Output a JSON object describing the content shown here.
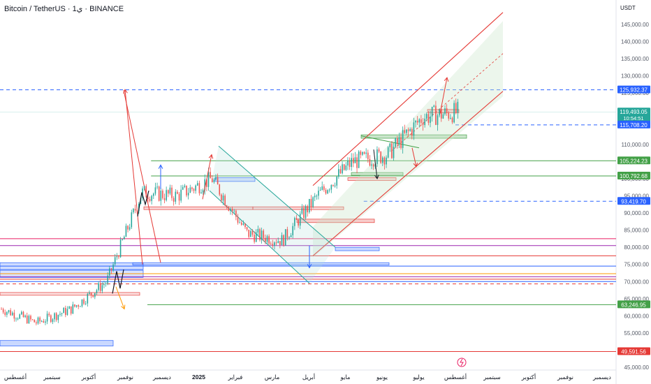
{
  "header": {
    "title": "Bitcoin / TetherUS · 1ي · BINANCE",
    "currency": "USDT"
  },
  "colors": {
    "up": "#26a69a",
    "down": "#ef5350",
    "blue_line": "#2962ff",
    "green_line": "#43a047",
    "red_line": "#e53935",
    "channel_fill": "#e8f5e9"
  },
  "chart_data": {
    "type": "candlestick",
    "ylim": [
      45000,
      150000
    ],
    "y_ticks": [
      145000,
      140000,
      135000,
      130000,
      125000,
      120000,
      110000,
      105000,
      100000,
      95000,
      90000,
      85000,
      80000,
      75000,
      70000,
      65000,
      60000,
      55000,
      45000
    ],
    "y_tick_labels": [
      "145,000.00",
      "140,000.00",
      "135,000.00",
      "130,000.00",
      "125,000.00",
      "120,000.00",
      "110,000.00",
      "105,000.00",
      "100,000.00",
      "95,000.00",
      "90,000.00",
      "85,000.00",
      "80,000.00",
      "75,000.00",
      "70,000.00",
      "65,000.00",
      "60,000.00",
      "55,000.00",
      "45,000.00"
    ],
    "x_labels": [
      "أغسطس",
      "سبتمبر",
      "أكتوبر",
      "نوفمبر",
      "ديسمبر",
      "2025",
      "فبراير",
      "مارس",
      "أبريل",
      "مايو",
      "يونيو",
      "يوليو",
      "أغسطس",
      "سبتمبر",
      "أكتوبر",
      "نوفمبر",
      "ديسمبر"
    ],
    "x_label_month_index": [
      0,
      1,
      2,
      3,
      4,
      5,
      6,
      7,
      8,
      9,
      10,
      11,
      12,
      13,
      14,
      15,
      16
    ],
    "monthly_path": [
      62000,
      58000,
      62000,
      70000,
      96000,
      95000,
      100000,
      84000,
      82000,
      95000,
      105000,
      107000,
      118000,
      119500
    ],
    "price_labels": [
      {
        "value": 125932.37,
        "text": "125,932.37",
        "color": "#2962ff"
      },
      {
        "value": 119493.05,
        "text": "119,493.05",
        "color": "#26a69a"
      },
      {
        "value": 115708.2,
        "text": "115,708.20",
        "color": "#2962ff"
      },
      {
        "value": 105224.23,
        "text": "105,224.23",
        "color": "#43a047"
      },
      {
        "value": 100792.68,
        "text": "100,792.68",
        "color": "#43a047"
      },
      {
        "value": 93419.7,
        "text": "93,419.70",
        "color": "#2962ff"
      },
      {
        "value": 63246.95,
        "text": "63,246.95",
        "color": "#43a047"
      },
      {
        "value": 49591.56,
        "text": "49,591.56",
        "color": "#e53935"
      }
    ],
    "countdown": "10:54:51",
    "horizontal_levels": [
      {
        "value": 125932.37,
        "style": "dashed",
        "color": "#2962ff"
      },
      {
        "value": 115708.2,
        "style": "dashed",
        "color": "#2962ff",
        "from_month": 12
      },
      {
        "value": 93419.7,
        "style": "dashed",
        "color": "#2962ff",
        "from_month": 9.5
      },
      {
        "value": 105224.23,
        "style": "solid",
        "color": "#43a047",
        "from_month": 3.7
      },
      {
        "value": 100792.68,
        "style": "solid",
        "color": "#43a047",
        "from_month": 3.7
      },
      {
        "value": 63246.95,
        "style": "solid",
        "color": "#43a047",
        "from_month": 3.6
      },
      {
        "value": 49591.56,
        "style": "solid",
        "color": "#e53935"
      },
      {
        "value": 82500,
        "style": "solid",
        "color": "#e91e63"
      },
      {
        "value": 80500,
        "style": "solid",
        "color": "#9c27b0"
      },
      {
        "value": 77500,
        "style": "solid",
        "color": "#e53935"
      },
      {
        "value": 74500,
        "style": "solid",
        "color": "#2962ff"
      },
      {
        "value": 72300,
        "style": "solid",
        "color": "#ff9800"
      },
      {
        "value": 71400,
        "style": "solid",
        "color": "#9c27b0"
      },
      {
        "value": 70700,
        "style": "solid",
        "color": "#e53935"
      },
      {
        "value": 70000,
        "style": "solid",
        "color": "#2962ff"
      },
      {
        "value": 69300,
        "style": "dashed",
        "color": "#e53935"
      }
    ]
  }
}
